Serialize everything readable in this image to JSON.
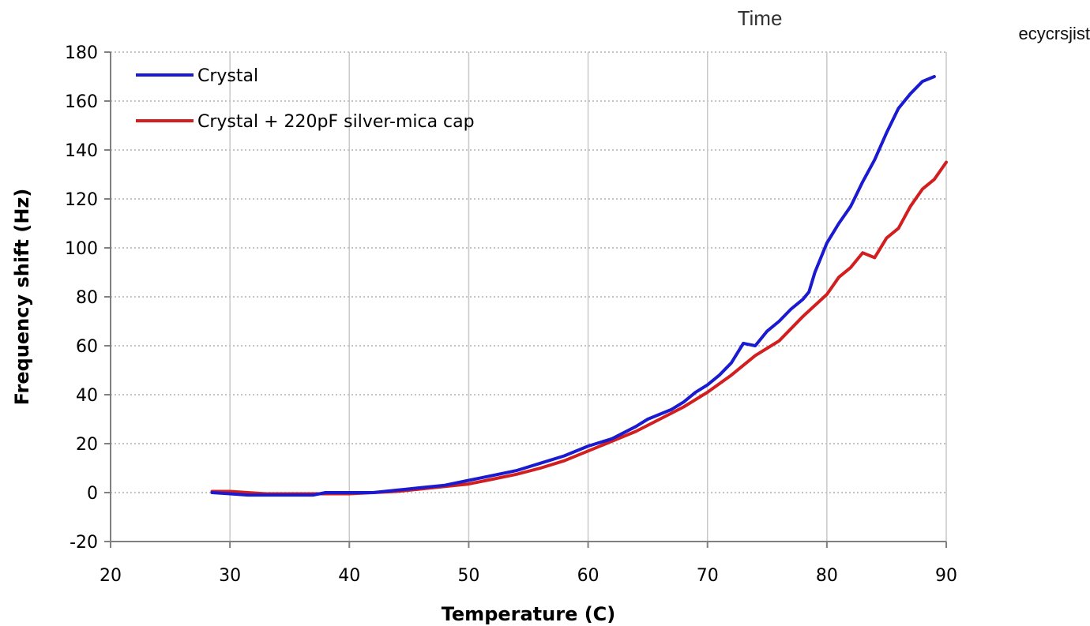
{
  "page": {
    "top_caption": "Time",
    "top_caption_tail": "ecycrsjist"
  },
  "chart_data": {
    "type": "line",
    "title": "",
    "xlabel": "Temperature (C)",
    "ylabel": "Frequency shift (Hz)",
    "xlim": [
      20,
      90
    ],
    "ylim": [
      -20,
      180
    ],
    "xticks": [
      20,
      30,
      40,
      50,
      60,
      70,
      80,
      90
    ],
    "yticks": [
      -20,
      0,
      20,
      40,
      60,
      80,
      100,
      120,
      140,
      160,
      180
    ],
    "grid": true,
    "legend": "top-left",
    "series": [
      {
        "name": "Crystal",
        "color": "#1a1ad0",
        "x": [
          28.5,
          30,
          31.5,
          33,
          35,
          37,
          38,
          40,
          42,
          44,
          46,
          48,
          50,
          51,
          52,
          54,
          56,
          58,
          60,
          62,
          64,
          65,
          67,
          68,
          69,
          70,
          71,
          72,
          73,
          74,
          75,
          76,
          77,
          78,
          78.5,
          79,
          80,
          81,
          82,
          83,
          84,
          85,
          86,
          87,
          88,
          89
        ],
        "y": [
          0,
          -0.5,
          -1,
          -1,
          -1,
          -1,
          0,
          0,
          0,
          1,
          2,
          3,
          5,
          6,
          7,
          9,
          12,
          15,
          19,
          22,
          27,
          30,
          34,
          37,
          41,
          44,
          48,
          53,
          61,
          60,
          66,
          70,
          75,
          79,
          82,
          90,
          102,
          110,
          117,
          127,
          136,
          147,
          157,
          163,
          168,
          170
        ]
      },
      {
        "name": "Crystal + 220pF silver-mica cap",
        "color": "#d21e1e",
        "x": [
          28.5,
          30,
          31.5,
          33,
          35,
          37,
          38,
          40,
          42,
          44,
          46,
          48,
          50,
          52,
          54,
          56,
          58,
          60,
          62,
          64,
          66,
          68,
          70,
          72,
          74,
          76,
          78,
          80,
          81,
          82,
          83,
          84,
          85,
          86,
          87,
          88,
          89,
          90
        ],
        "y": [
          0.5,
          0.5,
          0,
          -0.5,
          -0.5,
          -0.5,
          -0.5,
          -0.5,
          0,
          0.5,
          1.5,
          2.5,
          3.5,
          5.5,
          7.5,
          10,
          13,
          17,
          21,
          25,
          30,
          35,
          41,
          48,
          56,
          62,
          72,
          81,
          88,
          92,
          98,
          96,
          104,
          108,
          117,
          124,
          128,
          135
        ]
      }
    ]
  }
}
